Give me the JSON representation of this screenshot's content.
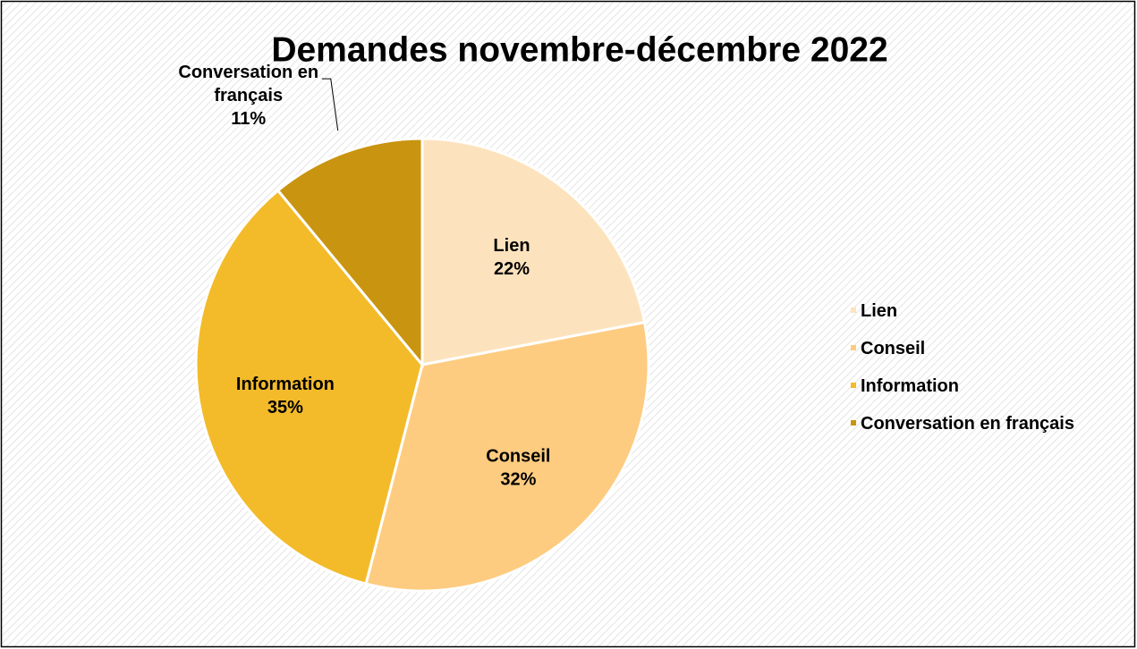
{
  "chart_data": {
    "type": "pie",
    "title": "Demandes novembre-décembre 2022",
    "categories": [
      "Lien",
      "Conseil",
      "Information",
      "Conversation en français"
    ],
    "values": [
      22,
      32,
      35,
      11
    ],
    "value_labels": [
      "22%",
      "32%",
      "35%",
      "11%"
    ],
    "colors": [
      "#fde3bd",
      "#fdcc80",
      "#f3bb2a",
      "#c9940f"
    ],
    "legend": "right"
  }
}
